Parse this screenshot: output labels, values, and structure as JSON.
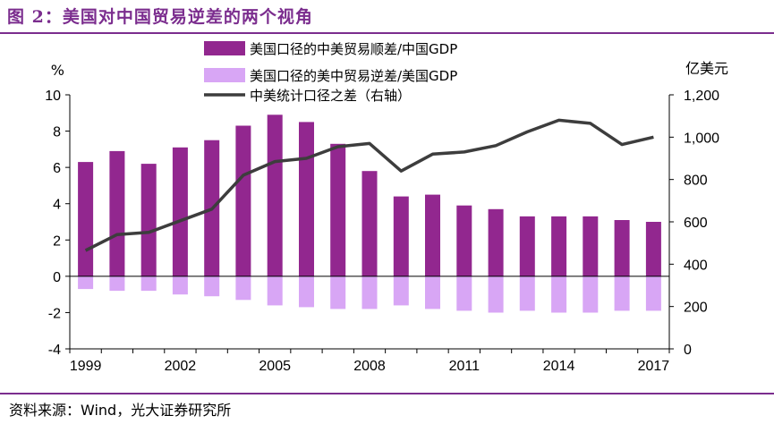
{
  "figure": {
    "title": "图 2：美国对中国贸易逆差的两个视角",
    "source": "资料来源：Wind，光大证券研究所"
  },
  "colors": {
    "accent": "#7b2d8e",
    "bar_positive": "#92278f",
    "bar_negative": "#d8a6f5",
    "line": "#3d3d3d"
  },
  "chart_data": {
    "type": "bar",
    "categories": [
      "1999",
      "2000",
      "2001",
      "2002",
      "2003",
      "2004",
      "2005",
      "2006",
      "2007",
      "2008",
      "2009",
      "2010",
      "2011",
      "2012",
      "2013",
      "2014",
      "2015",
      "2016",
      "2017"
    ],
    "x_tick_labels": [
      "1999",
      "2002",
      "2005",
      "2008",
      "2011",
      "2014",
      "2017"
    ],
    "left_axis": {
      "unit": "%",
      "ylim": [
        -4,
        10
      ],
      "ticks": [
        "10",
        "8",
        "6",
        "4",
        "2",
        "0",
        "-2",
        "-4"
      ]
    },
    "right_axis": {
      "unit": "亿美元",
      "ylim": [
        0,
        1200
      ],
      "ticks": [
        "1,200",
        "1,000",
        "800",
        "600",
        "400",
        "200",
        "0"
      ]
    },
    "series": [
      {
        "name": "美国口径的中美贸易顺差/中国GDP",
        "type": "bar",
        "axis": "left",
        "values": [
          6.3,
          6.9,
          6.2,
          7.1,
          7.5,
          8.3,
          8.9,
          8.5,
          7.3,
          5.8,
          4.4,
          4.5,
          3.9,
          3.7,
          3.3,
          3.3,
          3.3,
          3.1,
          3.0
        ]
      },
      {
        "name": "美国口径的美中贸易逆差/美国GDP",
        "type": "bar",
        "axis": "left",
        "values": [
          -0.7,
          -0.8,
          -0.8,
          -1.0,
          -1.1,
          -1.3,
          -1.6,
          -1.7,
          -1.8,
          -1.8,
          -1.6,
          -1.8,
          -1.9,
          -2.0,
          -1.9,
          -2.0,
          -2.0,
          -1.9,
          -1.9
        ]
      },
      {
        "name": "中美统计口径之差（右轴）",
        "type": "line",
        "axis": "right",
        "values": [
          465,
          540,
          550,
          605,
          660,
          820,
          885,
          900,
          955,
          970,
          840,
          920,
          930,
          960,
          1025,
          1080,
          1065,
          965,
          1000
        ]
      }
    ],
    "legend_position": "top",
    "grid": false
  }
}
